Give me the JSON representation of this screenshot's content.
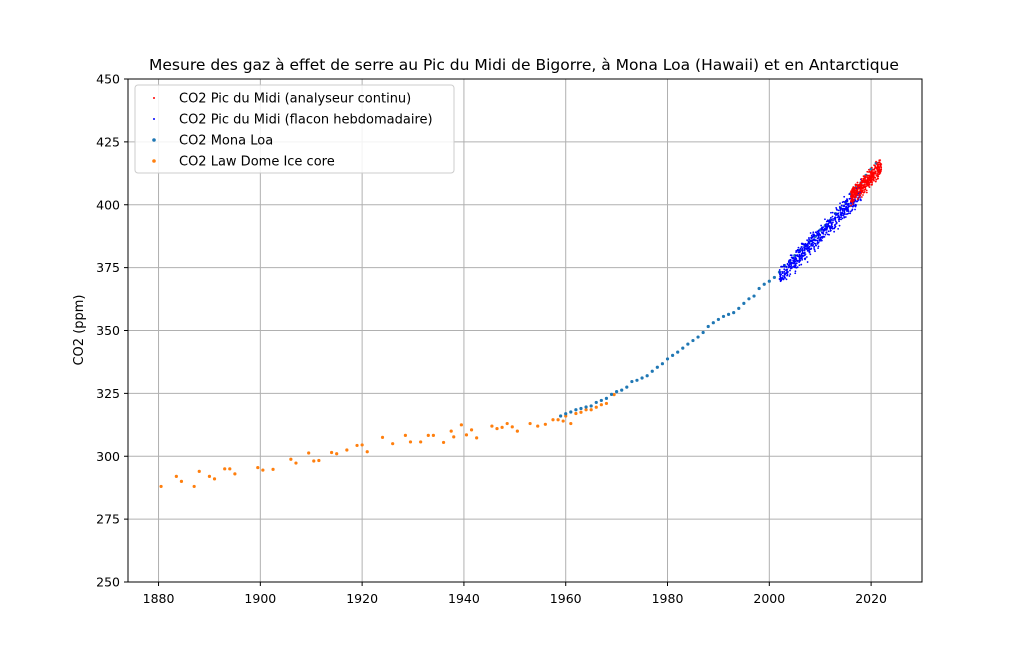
{
  "chart_data": {
    "type": "scatter",
    "title": "Mesure des gaz à effet de serre au Pic du Midi de Bigorre, à Mona Loa (Hawaii) et en Antarctique",
    "xlabel": "",
    "ylabel": "CO2 (ppm)",
    "xlim": [
      1874,
      2030
    ],
    "ylim": [
      250,
      450
    ],
    "xticks": [
      1880,
      1900,
      1920,
      1940,
      1960,
      1980,
      2000,
      2020
    ],
    "yticks": [
      250,
      275,
      300,
      325,
      350,
      375,
      400,
      425,
      450
    ],
    "grid": true,
    "legend_position": "top-left",
    "series": [
      {
        "name": "CO2 Pic du Midi (analyseur continu)",
        "color": "#ff0000",
        "marker": "tiny",
        "x_range": [
          2016,
          2022
        ],
        "trend": [
          [
            2016,
            403
          ],
          [
            2022,
            415
          ]
        ],
        "spread": 5,
        "count": 420
      },
      {
        "name": "CO2 Pic du Midi (flacon hebdomadaire)",
        "color": "#0000ff",
        "marker": "tiny",
        "x_range": [
          2002,
          2018
        ],
        "trend": [
          [
            2002,
            371
          ],
          [
            2018,
            405
          ]
        ],
        "spread": 6,
        "count": 620
      },
      {
        "name": "CO2 Mona Loa",
        "color": "#1f77b4",
        "marker": "small",
        "x": [
          1959,
          1960,
          1961,
          1962,
          1963,
          1964,
          1965,
          1966,
          1967,
          1968,
          1969,
          1970,
          1971,
          1972,
          1973,
          1974,
          1975,
          1976,
          1977,
          1978,
          1979,
          1980,
          1981,
          1982,
          1983,
          1984,
          1985,
          1986,
          1987,
          1988,
          1989,
          1990,
          1991,
          1992,
          1993,
          1994,
          1995,
          1996,
          1997,
          1998,
          1999,
          2000,
          2001,
          2002,
          2003,
          2004,
          2005,
          2006,
          2007,
          2008,
          2009,
          2010,
          2011,
          2012,
          2013,
          2014,
          2015,
          2016,
          2017,
          2018,
          2019,
          2020,
          2021
        ],
        "y": [
          316.0,
          316.9,
          317.6,
          318.5,
          319.0,
          319.6,
          320.0,
          321.4,
          322.2,
          323.0,
          324.6,
          325.7,
          326.3,
          327.5,
          329.7,
          330.2,
          331.1,
          332.0,
          333.8,
          335.4,
          336.8,
          338.7,
          340.1,
          341.4,
          343.0,
          344.6,
          346.0,
          347.4,
          349.2,
          351.6,
          353.1,
          354.4,
          355.6,
          356.4,
          357.1,
          358.8,
          360.8,
          362.6,
          363.7,
          366.7,
          368.4,
          369.6,
          371.1,
          373.2,
          375.8,
          377.5,
          379.8,
          381.9,
          383.8,
          385.6,
          387.4,
          389.9,
          391.7,
          393.9,
          396.5,
          398.7,
          401.0,
          404.4,
          406.8,
          408.7,
          411.7,
          414.2,
          416.5
        ]
      },
      {
        "name": "CO2 Law Dome Ice core",
        "color": "#ff7f0e",
        "marker": "small",
        "x": [
          1880.5,
          1883.5,
          1884.5,
          1887,
          1888,
          1890,
          1891,
          1893,
          1894,
          1895,
          1899.5,
          1900.5,
          1902.5,
          1906,
          1907,
          1909.5,
          1910.5,
          1911.5,
          1914,
          1915,
          1917,
          1919,
          1920,
          1921,
          1924,
          1926,
          1928.5,
          1929.5,
          1931.5,
          1933,
          1934,
          1936,
          1937.5,
          1938,
          1939.5,
          1940.5,
          1941.5,
          1942.5,
          1945.5,
          1946.5,
          1947.5,
          1948.5,
          1949.5,
          1950.5,
          1953,
          1954.5,
          1956,
          1957.5,
          1958.5,
          1959.5,
          1960,
          1961,
          1962,
          1963,
          1964,
          1965,
          1966,
          1967,
          1968,
          1969.5
        ],
        "y": [
          288,
          292,
          290,
          288,
          294,
          292,
          291,
          295,
          295,
          293,
          295.5,
          294.5,
          294.8,
          298.8,
          297.3,
          301.3,
          298.1,
          298.3,
          301.5,
          301.0,
          302.5,
          304.3,
          304.5,
          301.8,
          307.5,
          305.0,
          308.3,
          305.7,
          305.7,
          308.3,
          308.3,
          305.5,
          310.0,
          307.7,
          312.5,
          308.5,
          310.5,
          307.3,
          312.0,
          311.0,
          311.5,
          313.0,
          311.7,
          310.0,
          313.0,
          312.0,
          312.7,
          314.5,
          314.5,
          314.0,
          316.0,
          313.0,
          317.0,
          317.5,
          318.5,
          318.5,
          319.5,
          320.5,
          321.0,
          324.5
        ]
      }
    ]
  }
}
